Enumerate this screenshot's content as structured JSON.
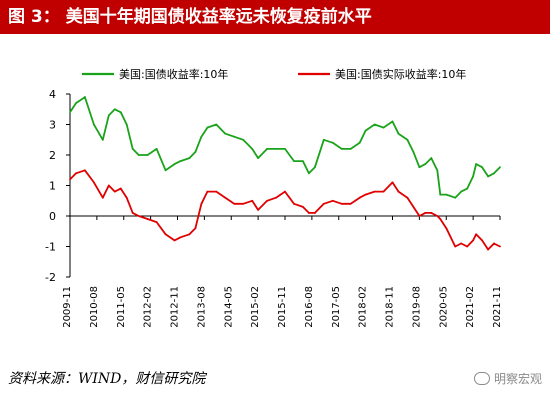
{
  "title": {
    "figure_label": "图 3：",
    "text": "美国十年期国债收益率远未恢复疫前水平"
  },
  "source": "资料来源：WIND，财信研究院",
  "watermark": "明察宏观",
  "chart_data": {
    "type": "line",
    "ylim": [
      -2,
      4
    ],
    "yticks": [
      "4",
      "3",
      "2",
      "1",
      "0",
      "-1",
      "-2"
    ],
    "xticks": [
      "2009-11",
      "2010-08",
      "2011-05",
      "2012-02",
      "2012-11",
      "2013-08",
      "2014-05",
      "2015-02",
      "2015-11",
      "2016-08",
      "2017-05",
      "2018-02",
      "2018-11",
      "2019-08",
      "2020-05",
      "2021-02",
      "2021-11"
    ],
    "legend_placement": "top",
    "grid": false,
    "series": [
      {
        "name": "美国:国债收益率:10年",
        "color": "#1aa31a",
        "x": [
          "2009-11",
          "2010-01",
          "2010-04",
          "2010-07",
          "2010-10",
          "2010-12",
          "2011-02",
          "2011-04",
          "2011-06",
          "2011-08",
          "2011-10",
          "2012-01",
          "2012-04",
          "2012-07",
          "2012-10",
          "2012-12",
          "2013-03",
          "2013-05",
          "2013-07",
          "2013-09",
          "2013-12",
          "2014-03",
          "2014-06",
          "2014-09",
          "2014-12",
          "2015-02",
          "2015-05",
          "2015-08",
          "2015-11",
          "2016-02",
          "2016-05",
          "2016-07",
          "2016-09",
          "2016-12",
          "2017-03",
          "2017-06",
          "2017-09",
          "2017-12",
          "2018-02",
          "2018-05",
          "2018-08",
          "2018-11",
          "2019-01",
          "2019-04",
          "2019-06",
          "2019-08",
          "2019-10",
          "2019-12",
          "2020-02",
          "2020-03",
          "2020-05",
          "2020-08",
          "2020-10",
          "2020-12",
          "2021-02",
          "2021-03",
          "2021-05",
          "2021-07",
          "2021-09",
          "2021-11"
        ],
        "values": [
          3.4,
          3.7,
          3.9,
          3.0,
          2.5,
          3.3,
          3.5,
          3.4,
          3.0,
          2.2,
          2.0,
          2.0,
          2.2,
          1.5,
          1.7,
          1.8,
          1.9,
          2.1,
          2.6,
          2.9,
          3.0,
          2.7,
          2.6,
          2.5,
          2.2,
          1.9,
          2.2,
          2.2,
          2.2,
          1.8,
          1.8,
          1.4,
          1.6,
          2.5,
          2.4,
          2.2,
          2.2,
          2.4,
          2.8,
          3.0,
          2.9,
          3.1,
          2.7,
          2.5,
          2.1,
          1.6,
          1.7,
          1.9,
          1.5,
          0.7,
          0.7,
          0.6,
          0.8,
          0.9,
          1.3,
          1.7,
          1.6,
          1.3,
          1.4,
          1.6
        ]
      },
      {
        "name": "美国:国债实际收益率:10年",
        "color": "#e00000",
        "x": [
          "2009-11",
          "2010-01",
          "2010-04",
          "2010-07",
          "2010-10",
          "2010-12",
          "2011-02",
          "2011-04",
          "2011-06",
          "2011-08",
          "2011-10",
          "2012-01",
          "2012-04",
          "2012-07",
          "2012-10",
          "2012-12",
          "2013-03",
          "2013-05",
          "2013-07",
          "2013-09",
          "2013-12",
          "2014-03",
          "2014-06",
          "2014-09",
          "2014-12",
          "2015-02",
          "2015-05",
          "2015-08",
          "2015-11",
          "2016-02",
          "2016-05",
          "2016-07",
          "2016-09",
          "2016-12",
          "2017-03",
          "2017-06",
          "2017-09",
          "2017-12",
          "2018-02",
          "2018-05",
          "2018-08",
          "2018-11",
          "2019-01",
          "2019-04",
          "2019-06",
          "2019-08",
          "2019-10",
          "2019-12",
          "2020-02",
          "2020-03",
          "2020-05",
          "2020-08",
          "2020-10",
          "2020-12",
          "2021-02",
          "2021-03",
          "2021-05",
          "2021-07",
          "2021-09",
          "2021-11"
        ],
        "values": [
          1.2,
          1.4,
          1.5,
          1.1,
          0.6,
          1.0,
          0.8,
          0.9,
          0.6,
          0.1,
          0.0,
          -0.1,
          -0.2,
          -0.6,
          -0.8,
          -0.7,
          -0.6,
          -0.4,
          0.4,
          0.8,
          0.8,
          0.6,
          0.4,
          0.4,
          0.5,
          0.2,
          0.5,
          0.6,
          0.8,
          0.4,
          0.3,
          0.1,
          0.1,
          0.4,
          0.5,
          0.4,
          0.4,
          0.6,
          0.7,
          0.8,
          0.8,
          1.1,
          0.8,
          0.6,
          0.3,
          0.0,
          0.1,
          0.1,
          0.0,
          -0.1,
          -0.4,
          -1.0,
          -0.9,
          -1.0,
          -0.8,
          -0.6,
          -0.8,
          -1.1,
          -0.9,
          -1.0
        ]
      }
    ]
  }
}
